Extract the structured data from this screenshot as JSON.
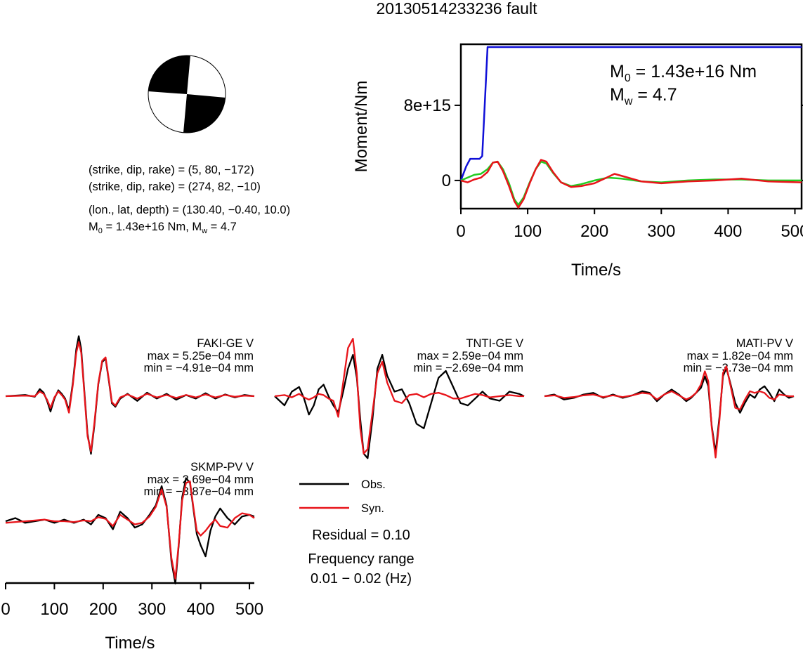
{
  "title": "20130514233236 fault",
  "focal": {
    "plane1": "(strike, dip, rake) = (5, 80, −172)",
    "plane2": "(strike, dip, rake) = (274, 82, −10)",
    "location": "(lon., lat, depth) = (130.40, −0.40, 10.0)",
    "m0": "1.43e+16 Nm",
    "mw": "4.7"
  },
  "colors": {
    "obs": "#000000",
    "syn": "#e8141a",
    "moment": "#1010d8",
    "rate_green": "#22cc22",
    "rate_red": "#e8141a",
    "beach_fill": "#000000"
  },
  "chart_data": [
    {
      "type": "line",
      "ylabel": "Moment/Nm",
      "xlabel": "Time/s",
      "xlim": [
        0,
        510
      ],
      "ylim": [
        -3000000000000000.0,
        1.45e+16
      ],
      "xticks": [
        "0",
        "100",
        "200",
        "300",
        "400",
        "500"
      ],
      "yticks": [
        "0",
        "8e+15"
      ],
      "annotation": {
        "m0_label": "M",
        "m0_sub": "0",
        "m0_value": " = 1.43e+16 Nm",
        "mw_label": "M",
        "mw_sub": "w",
        "mw_value": " = 4.7"
      },
      "series": [
        {
          "color": "blue",
          "x": [
            0,
            8,
            14,
            28,
            32,
            40,
            45,
            120,
            250,
            380,
            510
          ],
          "y": [
            0,
            1500000000000000.0,
            2300000000000000.0,
            2300000000000000.0,
            2600000000000000.0,
            1.42e+16,
            1.42e+16,
            1.42e+16,
            1.42e+16,
            1.42e+16,
            1.42e+16
          ]
        },
        {
          "color": "green",
          "x": [
            0,
            10,
            20,
            30,
            40,
            48,
            55,
            63,
            72,
            80,
            86,
            94,
            103,
            112,
            120,
            128,
            138,
            150,
            165,
            180,
            200,
            220,
            240,
            270,
            300,
            340,
            380,
            420,
            460,
            510
          ],
          "y": [
            0,
            300000000000000.0,
            600000000000000.0,
            700000000000000.0,
            1200000000000000.0,
            1900000000000000.0,
            2000000000000000.0,
            1200000000000000.0,
            -300000000000000.0,
            -2000000000000000.0,
            -2600000000000000.0,
            -1800000000000000.0,
            -200000000000000.0,
            1200000000000000.0,
            2000000000000000.0,
            1800000000000000.0,
            800000000000000.0,
            -200000000000000.0,
            -600000000000000.0,
            -400000000000000.0,
            0,
            300000000000000.0,
            200000000000000.0,
            -100000000000000.0,
            -200000000000000.0,
            0,
            100000000000000.0,
            100000000000000.0,
            0,
            0
          ]
        },
        {
          "color": "red",
          "x": [
            0,
            10,
            20,
            30,
            40,
            48,
            55,
            63,
            72,
            80,
            86,
            94,
            103,
            112,
            120,
            128,
            138,
            150,
            165,
            180,
            200,
            215,
            230,
            245,
            270,
            300,
            340,
            380,
            420,
            460,
            510
          ],
          "y": [
            0,
            -200000000000000.0,
            100000000000000.0,
            300000000000000.0,
            900000000000000.0,
            1900000000000000.0,
            2000000000000000.0,
            1000000000000000.0,
            -600000000000000.0,
            -2200000000000000.0,
            -2900000000000000.0,
            -2000000000000000.0,
            -300000000000000.0,
            1200000000000000.0,
            2200000000000000.0,
            2000000000000000.0,
            900000000000000.0,
            -200000000000000.0,
            -700000000000000.0,
            -600000000000000.0,
            -300000000000000.0,
            200000000000000.0,
            700000000000000.0,
            400000000000000.0,
            -100000000000000.0,
            -300000000000000.0,
            -100000000000000.0,
            0,
            200000000000000.0,
            -100000000000000.0,
            -200000000000000.0
          ]
        }
      ]
    },
    {
      "type": "line",
      "station": "FAKI-GE V",
      "max": "max = 5.25e−04 mm",
      "min": "min = −4.91e−04 mm",
      "xlim": [
        0,
        510
      ],
      "ylim": [
        -0.000491,
        0.000525
      ],
      "series": [
        {
          "name": "Obs.",
          "x": [
            0,
            40,
            60,
            70,
            78,
            85,
            92,
            100,
            108,
            115,
            122,
            130,
            138,
            145,
            150,
            155,
            160,
            168,
            175,
            182,
            190,
            198,
            205,
            212,
            218,
            225,
            235,
            250,
            270,
            290,
            310,
            330,
            350,
            370,
            390,
            410,
            430,
            450,
            470,
            490,
            510
          ],
          "y": [
            0,
            1e-05,
            -5e-06,
            6e-05,
            3e-05,
            -4e-05,
            -0.00013,
            -2e-05,
            5e-05,
            2e-05,
            -2e-05,
            -0.00012,
            0.00012,
            0.0004,
            0.00051,
            0.0004,
            0.00012,
            -0.00032,
            -0.00049,
            -0.00025,
            0.0001,
            0.00029,
            0.00032,
            0.00012,
            -6e-05,
            -9e-05,
            -2e-05,
            2e-05,
            -4e-05,
            3e-05,
            -2e-05,
            2e-05,
            -3e-05,
            1e-05,
            -2e-05,
            2.5e-05,
            -2e-05,
            1.5e-05,
            -1e-05,
            1e-05,
            0
          ]
        },
        {
          "name": "Syn.",
          "x": [
            0,
            40,
            60,
            70,
            78,
            85,
            92,
            100,
            108,
            115,
            122,
            130,
            138,
            145,
            150,
            155,
            160,
            168,
            175,
            182,
            190,
            198,
            205,
            212,
            218,
            225,
            235,
            250,
            270,
            290,
            310,
            330,
            350,
            370,
            390,
            410,
            430,
            450,
            470,
            490,
            510
          ],
          "y": [
            0,
            5e-06,
            0,
            4e-05,
            2e-05,
            -3e-05,
            -0.0001,
            -1e-05,
            4e-05,
            1e-05,
            -3e-05,
            -0.00014,
            0.0001,
            0.00037,
            0.00046,
            0.00037,
            0.0001,
            -0.00034,
            -0.00047,
            -0.00023,
            0.00011,
            0.0003,
            0.00033,
            0.00013,
            -5e-05,
            -8e-05,
            -1e-05,
            1.5e-05,
            -2e-05,
            2e-05,
            -1e-05,
            1e-05,
            -1.5e-05,
            1e-05,
            -1e-05,
            1.5e-05,
            -1e-05,
            1e-05,
            -5e-06,
            5e-06,
            0
          ]
        }
      ]
    },
    {
      "type": "line",
      "station": "TNTI-GE V",
      "max": "max = 2.59e−04 mm",
      "min": "min = −2.69e−04 mm",
      "xlim": [
        0,
        510
      ],
      "ylim": [
        -0.000269,
        0.000259
      ],
      "series": [
        {
          "name": "Obs.",
          "x": [
            0,
            20,
            35,
            50,
            60,
            70,
            80,
            90,
            100,
            110,
            120,
            130,
            140,
            150,
            160,
            168,
            175,
            182,
            190,
            200,
            210,
            220,
            230,
            245,
            260,
            275,
            290,
            305,
            320,
            335,
            350,
            365,
            380,
            395,
            410,
            425,
            440,
            460,
            480,
            500,
            510
          ],
          "y": [
            0,
            -4e-05,
            2e-05,
            4e-05,
            -1e-05,
            -8e-05,
            -4e-05,
            3e-05,
            5e-05,
            0,
            -4e-05,
            -7e-05,
            2e-05,
            0.00012,
            0.00018,
            8e-05,
            -0.0001,
            -0.00025,
            -0.00027,
            -0.0001,
            0.00012,
            0.00018,
            9e-05,
            2e-05,
            3e-05,
            -3e-05,
            -0.00012,
            -0.00014,
            -3e-05,
            8e-05,
            0.00011,
            4e-05,
            -3e-05,
            -4e-05,
            -1e-05,
            2e-05,
            -1e-05,
            -2e-05,
            2e-05,
            1e-05,
            0
          ]
        },
        {
          "name": "Syn.",
          "x": [
            0,
            20,
            35,
            50,
            60,
            70,
            80,
            90,
            100,
            110,
            120,
            130,
            140,
            150,
            160,
            168,
            175,
            182,
            190,
            200,
            210,
            220,
            230,
            245,
            260,
            275,
            290,
            305,
            320,
            335,
            350,
            365,
            380,
            395,
            410,
            425,
            440,
            460,
            480,
            500,
            510
          ],
          "y": [
            0,
            5e-06,
            -5e-06,
            1e-05,
            -5e-06,
            -1.5e-05,
            -5e-06,
            1e-05,
            5e-06,
            -1e-05,
            -2e-05,
            -9e-05,
            6e-05,
            0.00021,
            0.00025,
            0.0001,
            -0.00014,
            -0.00025,
            -0.00023,
            -7e-05,
            0.0001,
            0.00015,
            6e-05,
            -2e-05,
            -3e-05,
            5e-06,
            1e-05,
            -5e-06,
            1e-05,
            1.5e-05,
            5e-06,
            -1e-05,
            -1e-05,
            0,
            1e-05,
            5e-06,
            -5e-06,
            0,
            5e-06,
            0,
            0
          ]
        }
      ]
    },
    {
      "type": "line",
      "station": "MATI-PV V",
      "max": "max = 1.82e−04 mm",
      "min": "min = −3.73e−04 mm",
      "xlim": [
        0,
        510
      ],
      "ylim": [
        -0.000373,
        0.000182
      ],
      "series": [
        {
          "name": "Obs.",
          "x": [
            0,
            20,
            40,
            60,
            80,
            100,
            120,
            140,
            160,
            180,
            200,
            215,
            230,
            245,
            260,
            275,
            290,
            300,
            310,
            320,
            328,
            335,
            342,
            350,
            358,
            365,
            372,
            380,
            390,
            400,
            410,
            420,
            430,
            440,
            450,
            460,
            470,
            480,
            490,
            500,
            510
          ],
          "y": [
            0,
            1e-05,
            -2e-05,
            -1e-05,
            1e-05,
            2e-05,
            -1e-05,
            1e-05,
            -1e-05,
            5e-06,
            3e-05,
            2e-05,
            -3e-05,
            1e-05,
            4e-05,
            1e-05,
            -3e-05,
            -1e-05,
            2e-05,
            5e-05,
            0.00012,
            6e-05,
            -0.00018,
            -0.00034,
            -0.00012,
            0.00012,
            0.00017,
            8e-05,
            -4e-05,
            -0.0001,
            -4e-05,
            1e-05,
            -1e-05,
            4e-05,
            6e-05,
            2e-05,
            -3e-05,
            4e-05,
            1e-05,
            -1e-05,
            0
          ]
        },
        {
          "name": "Syn.",
          "x": [
            0,
            20,
            40,
            60,
            80,
            100,
            120,
            140,
            160,
            180,
            200,
            215,
            230,
            245,
            260,
            275,
            290,
            300,
            310,
            320,
            328,
            335,
            342,
            350,
            358,
            365,
            372,
            380,
            390,
            400,
            410,
            420,
            430,
            440,
            450,
            460,
            470,
            480,
            490,
            500,
            510
          ],
          "y": [
            0,
            5e-06,
            -1e-05,
            -5e-06,
            5e-06,
            1e-05,
            -5e-06,
            5e-06,
            -5e-06,
            5e-06,
            2e-05,
            1.5e-05,
            -2e-05,
            1e-05,
            3e-05,
            5e-06,
            -2e-05,
            -5e-06,
            2e-05,
            7e-05,
            0.00015,
            9e-05,
            -0.00019,
            -0.00037,
            -0.00014,
            0.00014,
            0.00018,
            7e-05,
            -7e-05,
            -8e-05,
            -2e-05,
            3e-05,
            2e-05,
            3e-05,
            2e-05,
            -1e-05,
            -2e-05,
            1e-05,
            5e-06,
            0,
            0
          ]
        }
      ]
    },
    {
      "type": "line",
      "station": "SKMP-PV V",
      "max": "max = 2.69e−04 mm",
      "min": "min = −3.87e−04 mm",
      "xlabel": "Time/s",
      "xlim": [
        0,
        510
      ],
      "ylim": [
        -0.000387,
        0.000269
      ],
      "xticks": [
        "0",
        "100",
        "200",
        "300",
        "400",
        "500"
      ],
      "series": [
        {
          "name": "Obs.",
          "x": [
            0,
            20,
            40,
            60,
            80,
            100,
            120,
            140,
            160,
            175,
            190,
            205,
            220,
            235,
            250,
            265,
            280,
            295,
            308,
            320,
            330,
            340,
            348,
            355,
            362,
            370,
            378,
            385,
            392,
            400,
            410,
            420,
            430,
            440,
            455,
            470,
            485,
            500,
            510
          ],
          "y": [
            0,
            2e-05,
            -1e-05,
            0,
            1e-05,
            -1e-05,
            1e-05,
            -1e-05,
            1e-05,
            -2e-05,
            4e-05,
            2e-05,
            -5e-05,
            6e-05,
            2e-05,
            -4e-05,
            -2e-05,
            4e-05,
            0.0001,
            0.00022,
            0.0001,
            -0.00025,
            -0.00039,
            -0.00015,
            0.00015,
            0.00027,
            0.00024,
            8e-05,
            -8e-05,
            -0.00015,
            -0.00022,
            -6e-05,
            3e-05,
            8e-05,
            2e-05,
            -2e-05,
            3e-05,
            4e-05,
            3e-05
          ]
        },
        {
          "name": "Syn.",
          "x": [
            0,
            20,
            40,
            60,
            80,
            100,
            120,
            140,
            160,
            175,
            190,
            205,
            220,
            235,
            250,
            265,
            280,
            295,
            308,
            320,
            330,
            340,
            348,
            355,
            362,
            370,
            378,
            385,
            392,
            400,
            410,
            420,
            430,
            440,
            455,
            470,
            485,
            500,
            510
          ],
          "y": [
            -1e-05,
            -5e-06,
            0,
            5e-06,
            1e-05,
            0,
            0,
            -5e-06,
            5e-06,
            0,
            2.5e-05,
            1.5e-05,
            -3e-05,
            4e-05,
            1e-05,
            -2e-05,
            -1e-05,
            3e-05,
            9e-05,
            0.0002,
            9e-05,
            -0.00023,
            -0.00036,
            -0.00014,
            0.00013,
            0.00024,
            0.00025,
            9e-05,
            -6e-05,
            -9e-05,
            -6e-05,
            -2e-05,
            1e-05,
            -3e-05,
            -4e-05,
            2e-05,
            5e-05,
            4e-05,
            2e-05
          ]
        }
      ]
    }
  ],
  "legend": {
    "obs": "Obs.",
    "syn": "Syn.",
    "residual": "Residual = 0.10",
    "freq_label": "Frequency range",
    "freq_value": "0.01 − 0.02 (Hz)"
  }
}
